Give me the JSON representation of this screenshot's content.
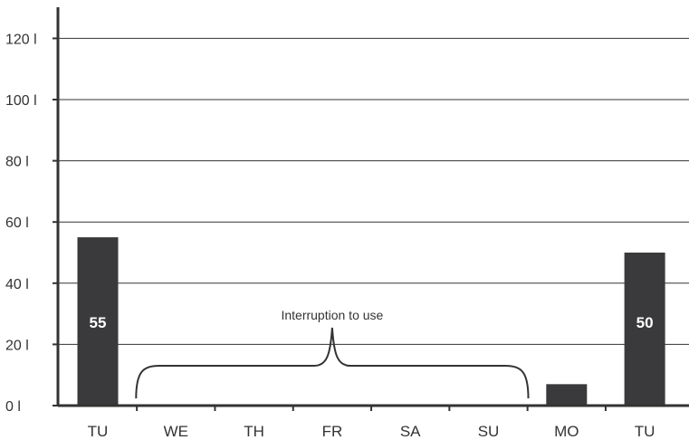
{
  "chart_data": {
    "type": "bar",
    "categories": [
      "TU",
      "WE",
      "TH",
      "FR",
      "SA",
      "SU",
      "MO",
      "TU"
    ],
    "values": [
      55,
      0,
      0,
      0,
      0,
      0,
      7,
      50
    ],
    "data_labels": [
      "55",
      "",
      "",
      "",
      "",
      "",
      "",
      "50"
    ],
    "y_ticks": [
      0,
      20,
      40,
      60,
      80,
      100,
      120
    ],
    "y_tick_labels": [
      "0 l",
      "20 l",
      "40 l",
      "60 l",
      "80 l",
      "100 l",
      "120 l"
    ],
    "ylim": [
      0,
      128
    ],
    "grid": true,
    "title": "",
    "xlabel": "",
    "ylabel": "",
    "annotation": {
      "text": "Interruption to use",
      "from_category_index": 1,
      "to_category_index": 5
    },
    "colors": {
      "bar": "#3a3a3d",
      "axis": "#333333",
      "grid": "#333333",
      "label_text": "#ffffff"
    }
  }
}
